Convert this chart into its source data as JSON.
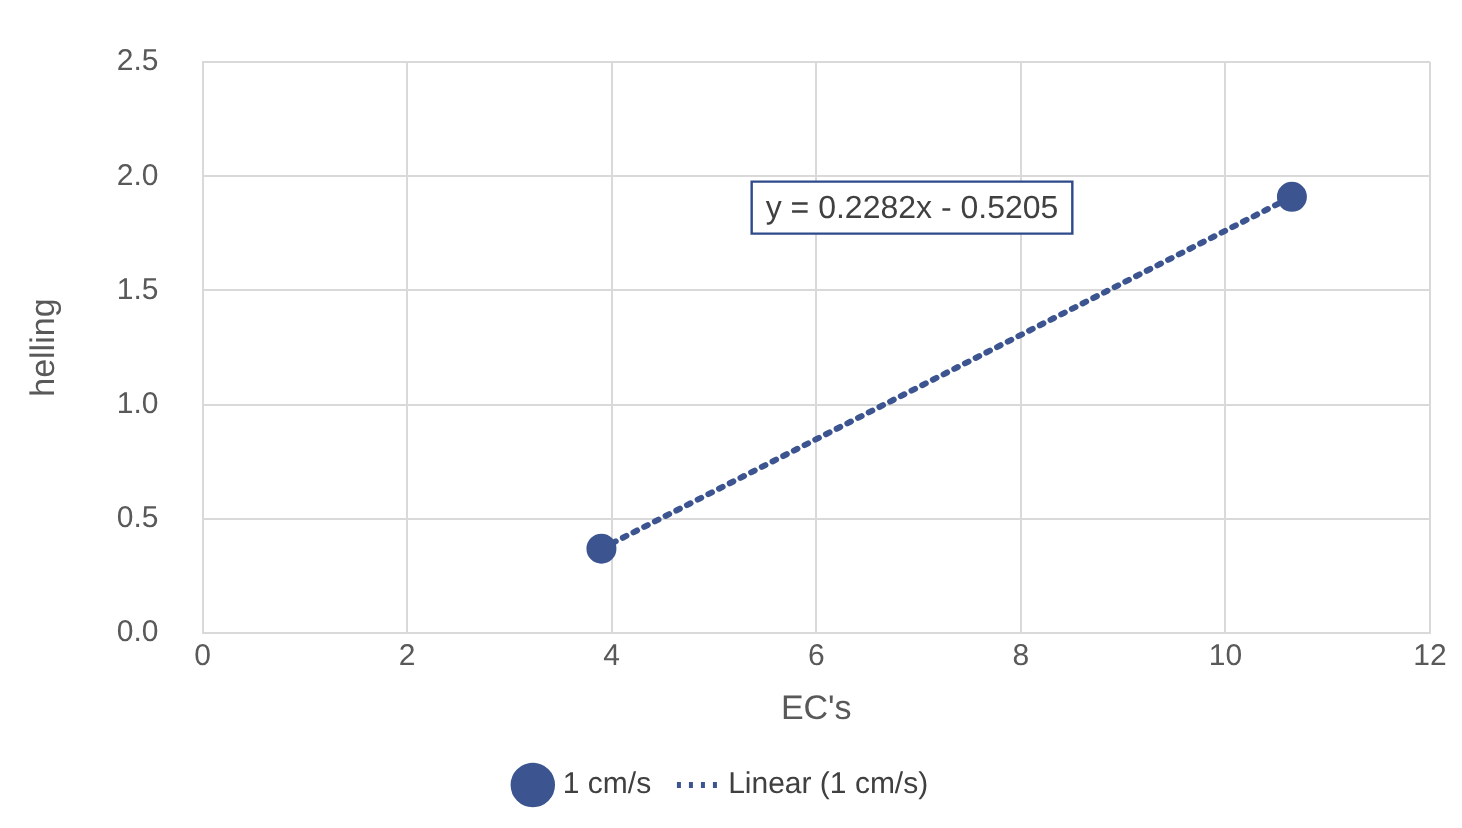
{
  "chart_data": {
    "type": "scatter",
    "xlabel": "EC's",
    "ylabel": "helling",
    "x": [
      3.9,
      10.65
    ],
    "series": [
      {
        "name": "1 cm/s",
        "color": "#3c5590",
        "values": [
          0.37,
          1.91
        ],
        "marker": "circle"
      },
      {
        "name": "Linear (1 cm/s)",
        "type": "line",
        "color": "#3c5590",
        "values": [
          0.37,
          1.91
        ],
        "line_style": "dotted",
        "marker": "none"
      }
    ],
    "annotations": [
      "y = 0.2282x - 0.5205"
    ],
    "xlim": [
      0,
      12
    ],
    "xticks": [
      0,
      2,
      4,
      6,
      8,
      10,
      12
    ],
    "ylim": [
      0,
      2.5
    ],
    "yticks": [
      {
        "value": 0,
        "label": "0.0"
      },
      {
        "value": 0.5,
        "label": "0.5"
      },
      {
        "value": 1,
        "label": "1.0"
      },
      {
        "value": 1.5,
        "label": "1.5"
      },
      {
        "value": 2,
        "label": "2.0"
      },
      {
        "value": 2.5,
        "label": "2.5"
      }
    ],
    "grid": true,
    "legend": "bottom"
  }
}
